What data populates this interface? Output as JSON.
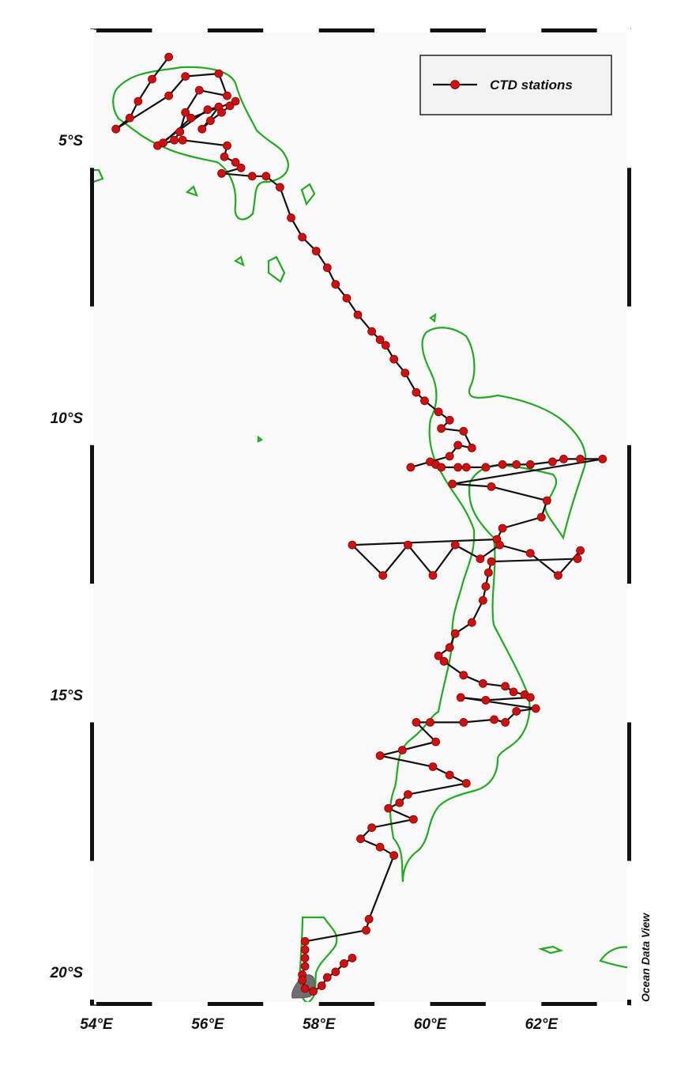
{
  "chart_data": {
    "type": "map",
    "credit": "Ocean Data View",
    "x_axis": {
      "range": [
        53.9,
        63.6
      ],
      "ticks": [
        54,
        56,
        58,
        60,
        62
      ],
      "tick_labels": [
        "54°E",
        "56°E",
        "58°E",
        "60°E",
        "62°E"
      ]
    },
    "y_axis": {
      "range": [
        -20.6,
        -3.0
      ],
      "ticks": [
        -5,
        -10,
        -15,
        -20
      ],
      "tick_labels": [
        "5°S",
        "10°S",
        "15°S",
        "20°S"
      ]
    },
    "legend": {
      "label": "CTD stations",
      "placement": "top-right"
    },
    "colors": {
      "track": "#111111",
      "station": "#cc1111",
      "contour": "#22aa22",
      "land": "#6e6e6e",
      "frame_background": "#fafafa"
    },
    "stations": [
      [
        55.3,
        -3.5
      ],
      [
        55.0,
        -3.9
      ],
      [
        54.75,
        -4.3
      ],
      [
        54.6,
        -4.6
      ],
      [
        54.35,
        -4.8
      ],
      [
        55.3,
        -4.2
      ],
      [
        55.6,
        -3.85
      ],
      [
        56.2,
        -3.8
      ],
      [
        56.35,
        -4.2
      ],
      [
        55.85,
        -4.1
      ],
      [
        55.6,
        -4.5
      ],
      [
        55.5,
        -4.85
      ],
      [
        55.4,
        -5.0
      ],
      [
        55.1,
        -5.1
      ],
      [
        56.0,
        -4.45
      ],
      [
        56.2,
        -4.4
      ],
      [
        55.9,
        -4.8
      ],
      [
        56.05,
        -4.65
      ],
      [
        56.25,
        -4.5
      ],
      [
        56.4,
        -4.38
      ],
      [
        56.5,
        -4.3
      ],
      [
        55.7,
        -4.6
      ],
      [
        55.2,
        -5.05
      ],
      [
        55.55,
        -5.0
      ],
      [
        56.35,
        -5.1
      ],
      [
        56.3,
        -5.3
      ],
      [
        56.5,
        -5.4
      ],
      [
        56.6,
        -5.5
      ],
      [
        56.25,
        -5.6
      ],
      [
        56.8,
        -5.65
      ],
      [
        57.05,
        -5.65
      ],
      [
        57.3,
        -5.85
      ],
      [
        57.5,
        -6.4
      ],
      [
        57.7,
        -6.75
      ],
      [
        57.95,
        -7.0
      ],
      [
        58.15,
        -7.3
      ],
      [
        58.3,
        -7.6
      ],
      [
        58.5,
        -7.85
      ],
      [
        58.7,
        -8.15
      ],
      [
        58.95,
        -8.45
      ],
      [
        59.1,
        -8.6
      ],
      [
        59.2,
        -8.7
      ],
      [
        59.35,
        -8.95
      ],
      [
        59.55,
        -9.2
      ],
      [
        59.75,
        -9.55
      ],
      [
        59.9,
        -9.7
      ],
      [
        60.15,
        -9.9
      ],
      [
        60.35,
        -10.05
      ],
      [
        60.2,
        -10.2
      ],
      [
        60.6,
        -10.25
      ],
      [
        60.75,
        -10.55
      ],
      [
        60.5,
        -10.5
      ],
      [
        60.35,
        -10.7
      ],
      [
        59.65,
        -10.9
      ],
      [
        60.0,
        -10.8
      ],
      [
        60.1,
        -10.85
      ],
      [
        60.2,
        -10.9
      ],
      [
        60.5,
        -10.9
      ],
      [
        60.65,
        -10.9
      ],
      [
        61.0,
        -10.9
      ],
      [
        61.3,
        -10.85
      ],
      [
        61.55,
        -10.85
      ],
      [
        61.8,
        -10.85
      ],
      [
        62.2,
        -10.8
      ],
      [
        62.4,
        -10.75
      ],
      [
        62.7,
        -10.75
      ],
      [
        63.1,
        -10.75
      ],
      [
        60.4,
        -11.2
      ],
      [
        61.1,
        -11.25
      ],
      [
        62.1,
        -11.5
      ],
      [
        62.0,
        -11.8
      ],
      [
        61.3,
        -12.0
      ],
      [
        61.2,
        -12.2
      ],
      [
        58.6,
        -12.3
      ],
      [
        59.15,
        -12.85
      ],
      [
        59.6,
        -12.3
      ],
      [
        60.05,
        -12.85
      ],
      [
        60.45,
        -12.3
      ],
      [
        60.9,
        -12.55
      ],
      [
        61.25,
        -12.3
      ],
      [
        61.8,
        -12.45
      ],
      [
        62.3,
        -12.85
      ],
      [
        62.7,
        -12.4
      ],
      [
        62.65,
        -12.55
      ],
      [
        61.1,
        -12.6
      ],
      [
        61.05,
        -12.8
      ],
      [
        61.0,
        -13.05
      ],
      [
        60.95,
        -13.3
      ],
      [
        60.75,
        -13.7
      ],
      [
        60.45,
        -13.9
      ],
      [
        60.35,
        -14.15
      ],
      [
        60.15,
        -14.3
      ],
      [
        60.25,
        -14.4
      ],
      [
        60.6,
        -14.65
      ],
      [
        60.95,
        -14.8
      ],
      [
        61.35,
        -14.85
      ],
      [
        61.5,
        -14.95
      ],
      [
        61.7,
        -15.0
      ],
      [
        61.8,
        -15.05
      ],
      [
        61.0,
        -15.1
      ],
      [
        60.55,
        -15.05
      ],
      [
        61.9,
        -15.25
      ],
      [
        61.55,
        -15.3
      ],
      [
        61.35,
        -15.5
      ],
      [
        61.15,
        -15.45
      ],
      [
        60.6,
        -15.5
      ],
      [
        60.0,
        -15.5
      ],
      [
        59.75,
        -15.5
      ],
      [
        60.1,
        -15.85
      ],
      [
        59.5,
        -16.0
      ],
      [
        59.1,
        -16.1
      ],
      [
        60.05,
        -16.3
      ],
      [
        60.35,
        -16.45
      ],
      [
        60.65,
        -16.6
      ],
      [
        59.6,
        -16.8
      ],
      [
        59.45,
        -16.95
      ],
      [
        59.25,
        -17.05
      ],
      [
        59.7,
        -17.25
      ],
      [
        58.95,
        -17.4
      ],
      [
        58.75,
        -17.6
      ],
      [
        59.1,
        -17.75
      ],
      [
        59.35,
        -17.9
      ],
      [
        58.9,
        -19.05
      ],
      [
        58.85,
        -19.25
      ],
      [
        57.75,
        -19.45
      ],
      [
        57.75,
        -19.6
      ],
      [
        57.75,
        -19.75
      ],
      [
        57.75,
        -19.9
      ],
      [
        57.7,
        -20.05
      ],
      [
        57.7,
        -20.15
      ],
      [
        57.75,
        -20.3
      ],
      [
        57.9,
        -20.35
      ],
      [
        58.05,
        -20.25
      ],
      [
        58.15,
        -20.1
      ],
      [
        58.3,
        -20.0
      ],
      [
        58.45,
        -19.85
      ],
      [
        58.6,
        -19.75
      ]
    ]
  }
}
